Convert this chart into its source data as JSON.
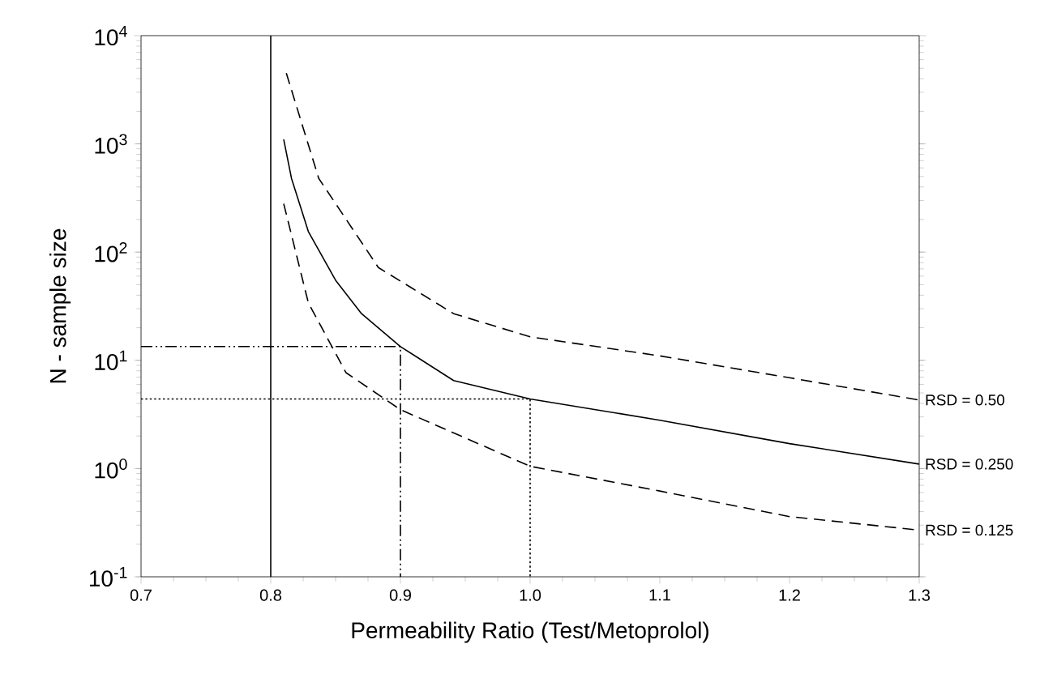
{
  "chart_data": {
    "type": "line",
    "xlabel": "Permeability Ratio (Test/Metoprolol)",
    "ylabel": "N - sample size",
    "log": "y",
    "xlim": [
      0.7,
      1.3
    ],
    "ylim": [
      0.1,
      10000
    ],
    "xticks": [
      0.7,
      0.8,
      0.9,
      {
        "value": 1.0,
        "label": "1.0"
      },
      1.1,
      1.2,
      1.3
    ],
    "yticks": [
      {
        "value": 0.1,
        "label": "10$^{-1}$"
      },
      {
        "value": 1,
        "label": "10$^{0}$"
      },
      {
        "value": 10,
        "label": "10$^{1}$"
      },
      {
        "value": 100,
        "label": "10$^{2}$"
      },
      {
        "value": 1000,
        "label": "10$^{3}$"
      },
      {
        "value": 10000,
        "label": "10$^{4}$"
      }
    ],
    "grid": false,
    "legend": false,
    "marker": "none",
    "ref_lines": [
      {
        "axis": "x",
        "value": 0.8,
        "color": "#000000",
        "line_style": "solid"
      }
    ],
    "series": [
      {
        "name": "RSD = 0.50",
        "color": "#000000",
        "line_style": "dashed",
        "x": [
          0.812,
          0.837,
          0.883,
          0.941,
          1.0,
          1.1,
          1.2,
          1.3
        ],
        "values": [
          4500,
          480,
          72,
          27,
          16.5,
          11,
          6.9,
          4.3
        ]
      },
      {
        "name": "RSD = 0.250",
        "color": "#000000",
        "line_style": "solid",
        "x": [
          0.81,
          0.816,
          0.829,
          0.85,
          0.87,
          0.9,
          0.941,
          1.0,
          1.1,
          1.2,
          1.3
        ],
        "values": [
          1100,
          480,
          155,
          55,
          27,
          13.4,
          6.5,
          4.4,
          2.8,
          1.7,
          1.1
        ]
      },
      {
        "name": "RSD = 0.125",
        "color": "#000000",
        "line_style": "dashed",
        "x": [
          0.81,
          0.829,
          0.858,
          0.9,
          1.0,
          1.1,
          1.2,
          1.3
        ],
        "values": [
          280,
          34,
          7.7,
          3.5,
          1.05,
          0.62,
          0.36,
          0.27
        ]
      },
      {
        "color": "#000000",
        "line_style": "dashdot",
        "x": [
          0.7,
          0.9,
          0.9
        ],
        "values": [
          13.4,
          13.4,
          0.1
        ]
      },
      {
        "color": "#000000",
        "line_style": "dotted",
        "x": [
          0.7,
          1.0,
          1.0
        ],
        "values": [
          4.4,
          4.4,
          0.1
        ]
      }
    ]
  }
}
